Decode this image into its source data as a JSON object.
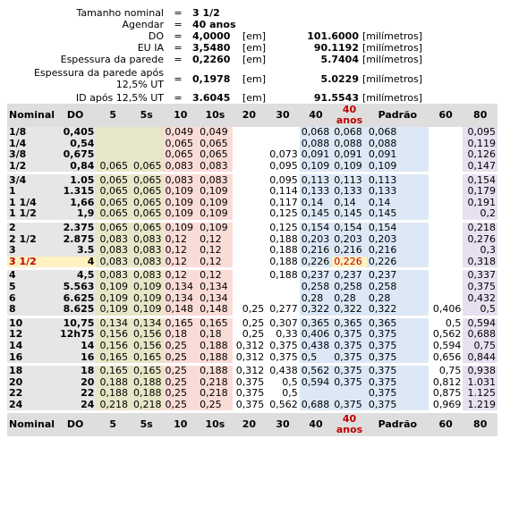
{
  "summary": [
    {
      "label": "Tamanho nominal",
      "eq": "=",
      "value": "3 1/2",
      "unit": "",
      "value2": "",
      "unit2": ""
    },
    {
      "label": "Agendar",
      "eq": "=",
      "value": "40 anos",
      "unit": "",
      "value2": "",
      "unit2": ""
    },
    {
      "label": "DO",
      "eq": "=",
      "value": "4,0000",
      "unit": "[em]",
      "value2": "101.6000",
      "unit2": "[milímetros]"
    },
    {
      "label": "EU IA",
      "eq": "=",
      "value": "3,5480",
      "unit": "[em]",
      "value2": "90.1192",
      "unit2": "[milímetros]"
    },
    {
      "label": "Espessura da parede",
      "eq": "=",
      "value": "0,2260",
      "unit": "[em]",
      "value2": "5.7404",
      "unit2": "[milímetros]"
    },
    {
      "label": "Espessura da parede após 12,5% UT",
      "eq": "=",
      "value": "0,1978",
      "unit": "[em]",
      "value2": "5.0229",
      "unit2": "[milímetros]"
    },
    {
      "label": "ID após 12,5% UT",
      "eq": "=",
      "value": "3.6045",
      "unit": "[em]",
      "value2": "91.5543",
      "unit2": "[milímetros]"
    }
  ],
  "headers": [
    "Nominal",
    "DO",
    "5",
    "5s",
    "10",
    "10s",
    "20",
    "30",
    "40",
    "40 anos",
    "Padrão",
    "60",
    "80"
  ],
  "selected_row": "3 1/2",
  "groups": [
    [
      [
        "1/8",
        "0,405",
        "",
        "",
        "0,049",
        "0,049",
        "",
        "",
        "0,068",
        "0,068",
        "0,068",
        "",
        "0,095"
      ],
      [
        "1/4",
        "0,54",
        "",
        "",
        "0,065",
        "0,065",
        "",
        "",
        "0,088",
        "0,088",
        "0,088",
        "",
        "0,119"
      ],
      [
        "3/8",
        "0,675",
        "",
        "",
        "0,065",
        "0,065",
        "",
        "0,073",
        "0,091",
        "0,091",
        "0,091",
        "",
        "0,126"
      ],
      [
        "1/2",
        "0,84",
        "0,065",
        "0,065",
        "0,083",
        "0,083",
        "",
        "0,095",
        "0,109",
        "0,109",
        "0,109",
        "",
        "0,147"
      ]
    ],
    [
      [
        "3/4",
        "1.05",
        "0,065",
        "0,065",
        "0,083",
        "0,083",
        "",
        "0,095",
        "0,113",
        "0,113",
        "0,113",
        "",
        "0,154"
      ],
      [
        "1",
        "1.315",
        "0,065",
        "0,065",
        "0,109",
        "0,109",
        "",
        "0,114",
        "0,133",
        "0,133",
        "0,133",
        "",
        "0,179"
      ],
      [
        "1 1/4",
        "1,66",
        "0,065",
        "0,065",
        "0,109",
        "0,109",
        "",
        "0,117",
        "0,14",
        "0,14",
        "0,14",
        "",
        "0,191"
      ],
      [
        "1 1/2",
        "1,9",
        "0,065",
        "0,065",
        "0,109",
        "0,109",
        "",
        "0,125",
        "0,145",
        "0,145",
        "0,145",
        "",
        "0,2"
      ]
    ],
    [
      [
        "2",
        "2.375",
        "0,065",
        "0,065",
        "0,109",
        "0,109",
        "",
        "0,125",
        "0,154",
        "0,154",
        "0,154",
        "",
        "0,218"
      ],
      [
        "2 1/2",
        "2.875",
        "0,083",
        "0,083",
        "0,12",
        "0,12",
        "",
        "0,188",
        "0,203",
        "0,203",
        "0,203",
        "",
        "0,276"
      ],
      [
        "3",
        "3.5",
        "0,083",
        "0,083",
        "0,12",
        "0,12",
        "",
        "0,188",
        "0,216",
        "0,216",
        "0,216",
        "",
        "0,3"
      ],
      [
        "3 1/2",
        "4",
        "0,083",
        "0,083",
        "0,12",
        "0,12",
        "",
        "0,188",
        "0,226",
        "0,226",
        "0,226",
        "",
        "0,318"
      ]
    ],
    [
      [
        "4",
        "4,5",
        "0,083",
        "0,083",
        "0,12",
        "0,12",
        "",
        "0,188",
        "0,237",
        "0,237",
        "0,237",
        "",
        "0,337"
      ],
      [
        "5",
        "5.563",
        "0,109",
        "0,109",
        "0,134",
        "0,134",
        "",
        "",
        "0,258",
        "0,258",
        "0,258",
        "",
        "0,375"
      ],
      [
        "6",
        "6.625",
        "0,109",
        "0,109",
        "0,134",
        "0,134",
        "",
        "",
        "0,28",
        "0,28",
        "0,28",
        "",
        "0,432"
      ],
      [
        "8",
        "8.625",
        "0,109",
        "0,109",
        "0,148",
        "0,148",
        "0,25",
        "0,277",
        "0,322",
        "0,322",
        "0,322",
        "0,406",
        "0,5"
      ]
    ],
    [
      [
        "10",
        "10,75",
        "0,134",
        "0,134",
        "0,165",
        "0,165",
        "0,25",
        "0,307",
        "0,365",
        "0,365",
        "0,365",
        "0,5",
        "0,594"
      ],
      [
        "12",
        "12h75",
        "0,156",
        "0,156",
        "0,18",
        "0,18",
        "0,25",
        "0,33",
        "0,406",
        "0,375",
        "0,375",
        "0,562",
        "0,688"
      ],
      [
        "14",
        "14",
        "0,156",
        "0,156",
        "0,25",
        "0,188",
        "0,312",
        "0,375",
        "0,438",
        "0,375",
        "0,375",
        "0,594",
        "0,75"
      ],
      [
        "16",
        "16",
        "0,165",
        "0,165",
        "0,25",
        "0,188",
        "0,312",
        "0,375",
        "0,5",
        "0,375",
        "0,375",
        "0,656",
        "0,844"
      ]
    ],
    [
      [
        "18",
        "18",
        "0,165",
        "0,165",
        "0,25",
        "0,188",
        "0,312",
        "0,438",
        "0,562",
        "0,375",
        "0,375",
        "0,75",
        "0,938"
      ],
      [
        "20",
        "20",
        "0,188",
        "0,188",
        "0,25",
        "0,218",
        "0,375",
        "0,5",
        "0,594",
        "0,375",
        "0,375",
        "0,812",
        "1.031"
      ],
      [
        "22",
        "22",
        "0,188",
        "0,188",
        "0,25",
        "0,218",
        "0,375",
        "0,5",
        "",
        "",
        "0,375",
        "0,875",
        "1.125"
      ],
      [
        "24",
        "24",
        "0,218",
        "0,218",
        "0,25",
        "0,25",
        "0,375",
        "0,562",
        "0,688",
        "0,375",
        "0,375",
        "0,969",
        "1.219"
      ]
    ]
  ],
  "colors": {
    "header_bg": "#dedede",
    "nominal_bg": "#e6e6e6",
    "sch5_bg": "#e8e6c8",
    "sch10_bg": "#fadcd6",
    "sch40_bg": "#dce8f6",
    "sch80_bg": "#e6e0f0",
    "highlight_bg": "#fff2c0",
    "selected_text": "#c00000"
  }
}
